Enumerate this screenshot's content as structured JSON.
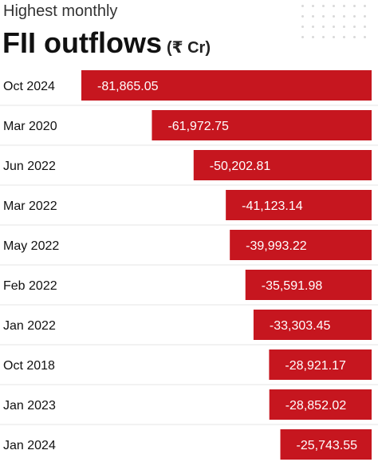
{
  "header": {
    "subtitle": "Highest monthly",
    "title": "FII outflows",
    "unit": "(₹ Cr)"
  },
  "colors": {
    "bar": "#c6161f",
    "bar_label": "#ffffff",
    "category_text": "#111111",
    "divider": "#e6e6e6"
  },
  "chart_data": {
    "type": "bar",
    "orientation": "horizontal",
    "title": "Highest monthly FII outflows (₹ Cr)",
    "categories": [
      "Oct 2024",
      "Mar 2020",
      "Jun 2022",
      "Mar 2022",
      "May 2022",
      "Feb 2022",
      "Jan 2022",
      "Oct 2018",
      "Jan 2023",
      "Jan 2024"
    ],
    "values": [
      -81865.05,
      -61972.75,
      -50202.81,
      -41123.14,
      -39993.22,
      -35591.98,
      -33303.45,
      -28921.17,
      -28852.02,
      -25743.55
    ],
    "value_labels": [
      "-81,865.05",
      "-61,972.75",
      "-50,202.81",
      "-41,123.14",
      "-39,993.22",
      "-35,591.98",
      "-33,303.45",
      "-28,921.17",
      "-28,852.02",
      "-25,743.55"
    ],
    "xlabel": "",
    "ylabel": "",
    "grid": false,
    "legend": "none"
  }
}
